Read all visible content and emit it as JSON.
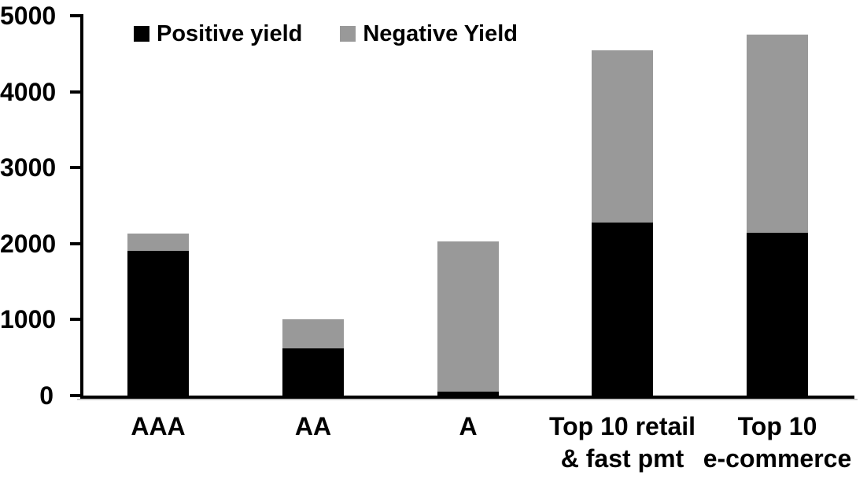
{
  "chart_data": {
    "type": "bar",
    "stacked": true,
    "title": "",
    "xlabel": "",
    "ylabel": "",
    "background_color": "#ffffff",
    "axis_color": "#000000",
    "axis_shadow_color": "#c9c9c9",
    "grid": false,
    "legend_position": "top",
    "ylim": [
      0,
      5000
    ],
    "y_ticks": [
      0,
      1000,
      2000,
      3000,
      4000,
      5000
    ],
    "categories": [
      "AAA",
      "AA",
      "A",
      "Top 10 retail & fast pmt",
      "Top 10 e-commerce"
    ],
    "category_label_lines": [
      [
        "AAA"
      ],
      [
        "AA"
      ],
      [
        "A"
      ],
      [
        "Top 10 retail",
        "& fast pmt"
      ],
      [
        "Top 10",
        "e-commerce"
      ]
    ],
    "series": [
      {
        "name": "Positive yield",
        "color": "#000000",
        "values": [
          1900,
          620,
          50,
          2280,
          2140
        ]
      },
      {
        "name": "Negative Yield",
        "color": "#999999",
        "values": [
          230,
          380,
          1980,
          2270,
          2610
        ]
      }
    ],
    "totals": [
      2130,
      1000,
      2030,
      4550,
      4750
    ]
  }
}
